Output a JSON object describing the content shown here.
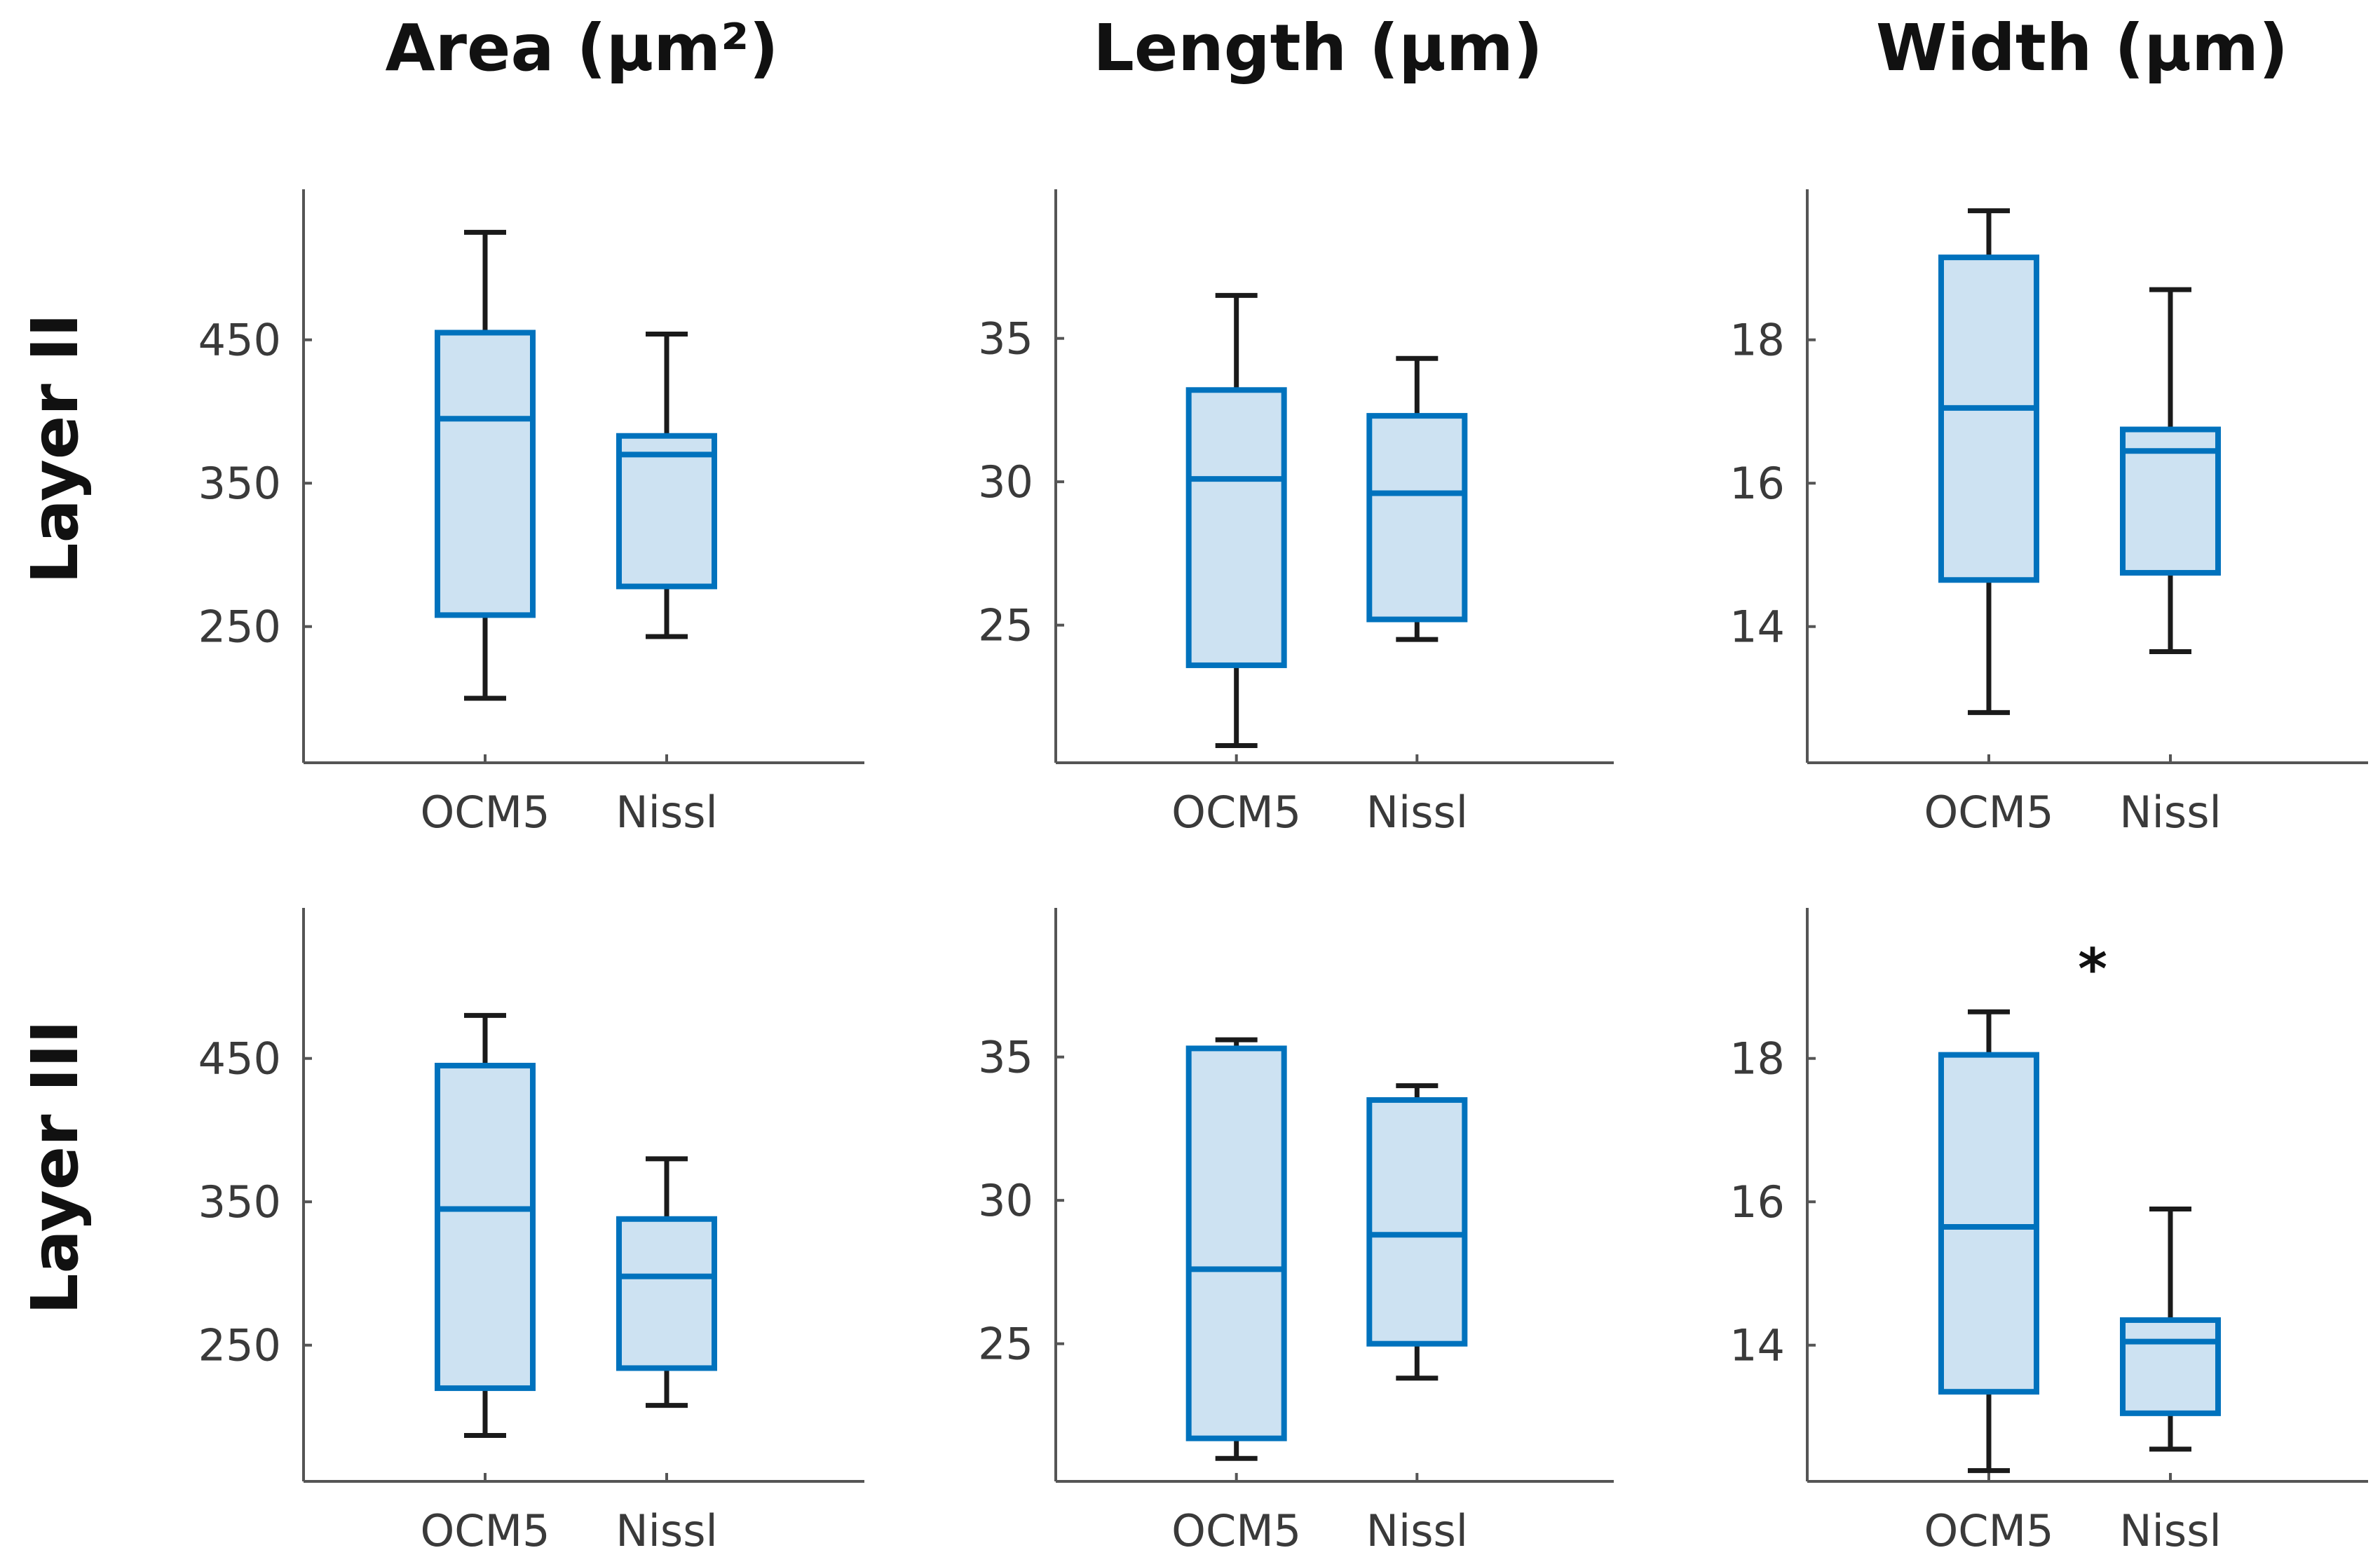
{
  "colors": {
    "box_stroke": "#0072BD",
    "box_fill": "#cde2f2",
    "whisker": "#1a1a1a"
  },
  "column_titles": [
    "Area (µm²)",
    "Length (µm)",
    "Width (µm)"
  ],
  "row_labels": [
    "Layer II",
    "Layer III"
  ],
  "chart_data": [
    {
      "type": "box",
      "row": "Layer II",
      "title": "Area (µm²)",
      "categories": [
        "OCM5",
        "Nissl"
      ],
      "yticks": [
        250,
        350,
        450
      ],
      "ylim": [
        155,
        555
      ],
      "boxes": [
        {
          "whisker_low": 200,
          "q1": 258,
          "median": 395,
          "q3": 455,
          "whisker_high": 525
        },
        {
          "whisker_low": 243,
          "q1": 278,
          "median": 370,
          "q3": 383,
          "whisker_high": 454
        }
      ]
    },
    {
      "type": "box",
      "row": "Layer II",
      "title": "Length (µm)",
      "categories": [
        "OCM5",
        "Nissl"
      ],
      "yticks": [
        25,
        30,
        35
      ],
      "ylim": [
        20.2,
        40.2
      ],
      "boxes": [
        {
          "whisker_low": 20.8,
          "q1": 23.6,
          "median": 30.1,
          "q3": 33.2,
          "whisker_high": 36.5
        },
        {
          "whisker_low": 24.5,
          "q1": 25.2,
          "median": 29.6,
          "q3": 32.3,
          "whisker_high": 34.3
        }
      ]
    },
    {
      "type": "box",
      "row": "Layer II",
      "title": "Width (µm)",
      "categories": [
        "OCM5",
        "Nissl"
      ],
      "yticks": [
        14,
        16,
        18
      ],
      "ylim": [
        12.1,
        20.1
      ],
      "boxes": [
        {
          "whisker_low": 12.8,
          "q1": 14.65,
          "median": 17.05,
          "q3": 19.15,
          "whisker_high": 19.8
        },
        {
          "whisker_low": 13.65,
          "q1": 14.75,
          "median": 16.45,
          "q3": 16.75,
          "whisker_high": 18.7
        }
      ]
    },
    {
      "type": "box",
      "row": "Layer III",
      "title": "Area (µm²)",
      "categories": [
        "OCM5",
        "Nissl"
      ],
      "yticks": [
        250,
        350,
        450
      ],
      "ylim": [
        155,
        555
      ],
      "boxes": [
        {
          "whisker_low": 187,
          "q1": 220,
          "median": 345,
          "q3": 445,
          "whisker_high": 480
        },
        {
          "whisker_low": 208,
          "q1": 234,
          "median": 298,
          "q3": 338,
          "whisker_high": 380
        }
      ]
    },
    {
      "type": "box",
      "row": "Layer III",
      "title": "Length (µm)",
      "categories": [
        "OCM5",
        "Nissl"
      ],
      "yticks": [
        25,
        30,
        35
      ],
      "ylim": [
        20.2,
        40.2
      ],
      "boxes": [
        {
          "whisker_low": 21.0,
          "q1": 21.7,
          "median": 27.6,
          "q3": 35.3,
          "whisker_high": 35.6
        },
        {
          "whisker_low": 23.8,
          "q1": 25.0,
          "median": 28.8,
          "q3": 33.5,
          "whisker_high": 34.0
        }
      ]
    },
    {
      "type": "box",
      "row": "Layer III",
      "title": "Width (µm)",
      "categories": [
        "OCM5",
        "Nissl"
      ],
      "yticks": [
        14,
        16,
        18
      ],
      "ylim": [
        12.1,
        20.1
      ],
      "boxes": [
        {
          "whisker_low": 12.25,
          "q1": 13.35,
          "median": 15.65,
          "q3": 18.05,
          "whisker_high": 18.65
        },
        {
          "whisker_low": 12.55,
          "q1": 13.05,
          "median": 14.05,
          "q3": 14.35,
          "whisker_high": 15.9
        }
      ]
    }
  ],
  "annotations": [
    {
      "panel": 5,
      "text": "*"
    }
  ]
}
